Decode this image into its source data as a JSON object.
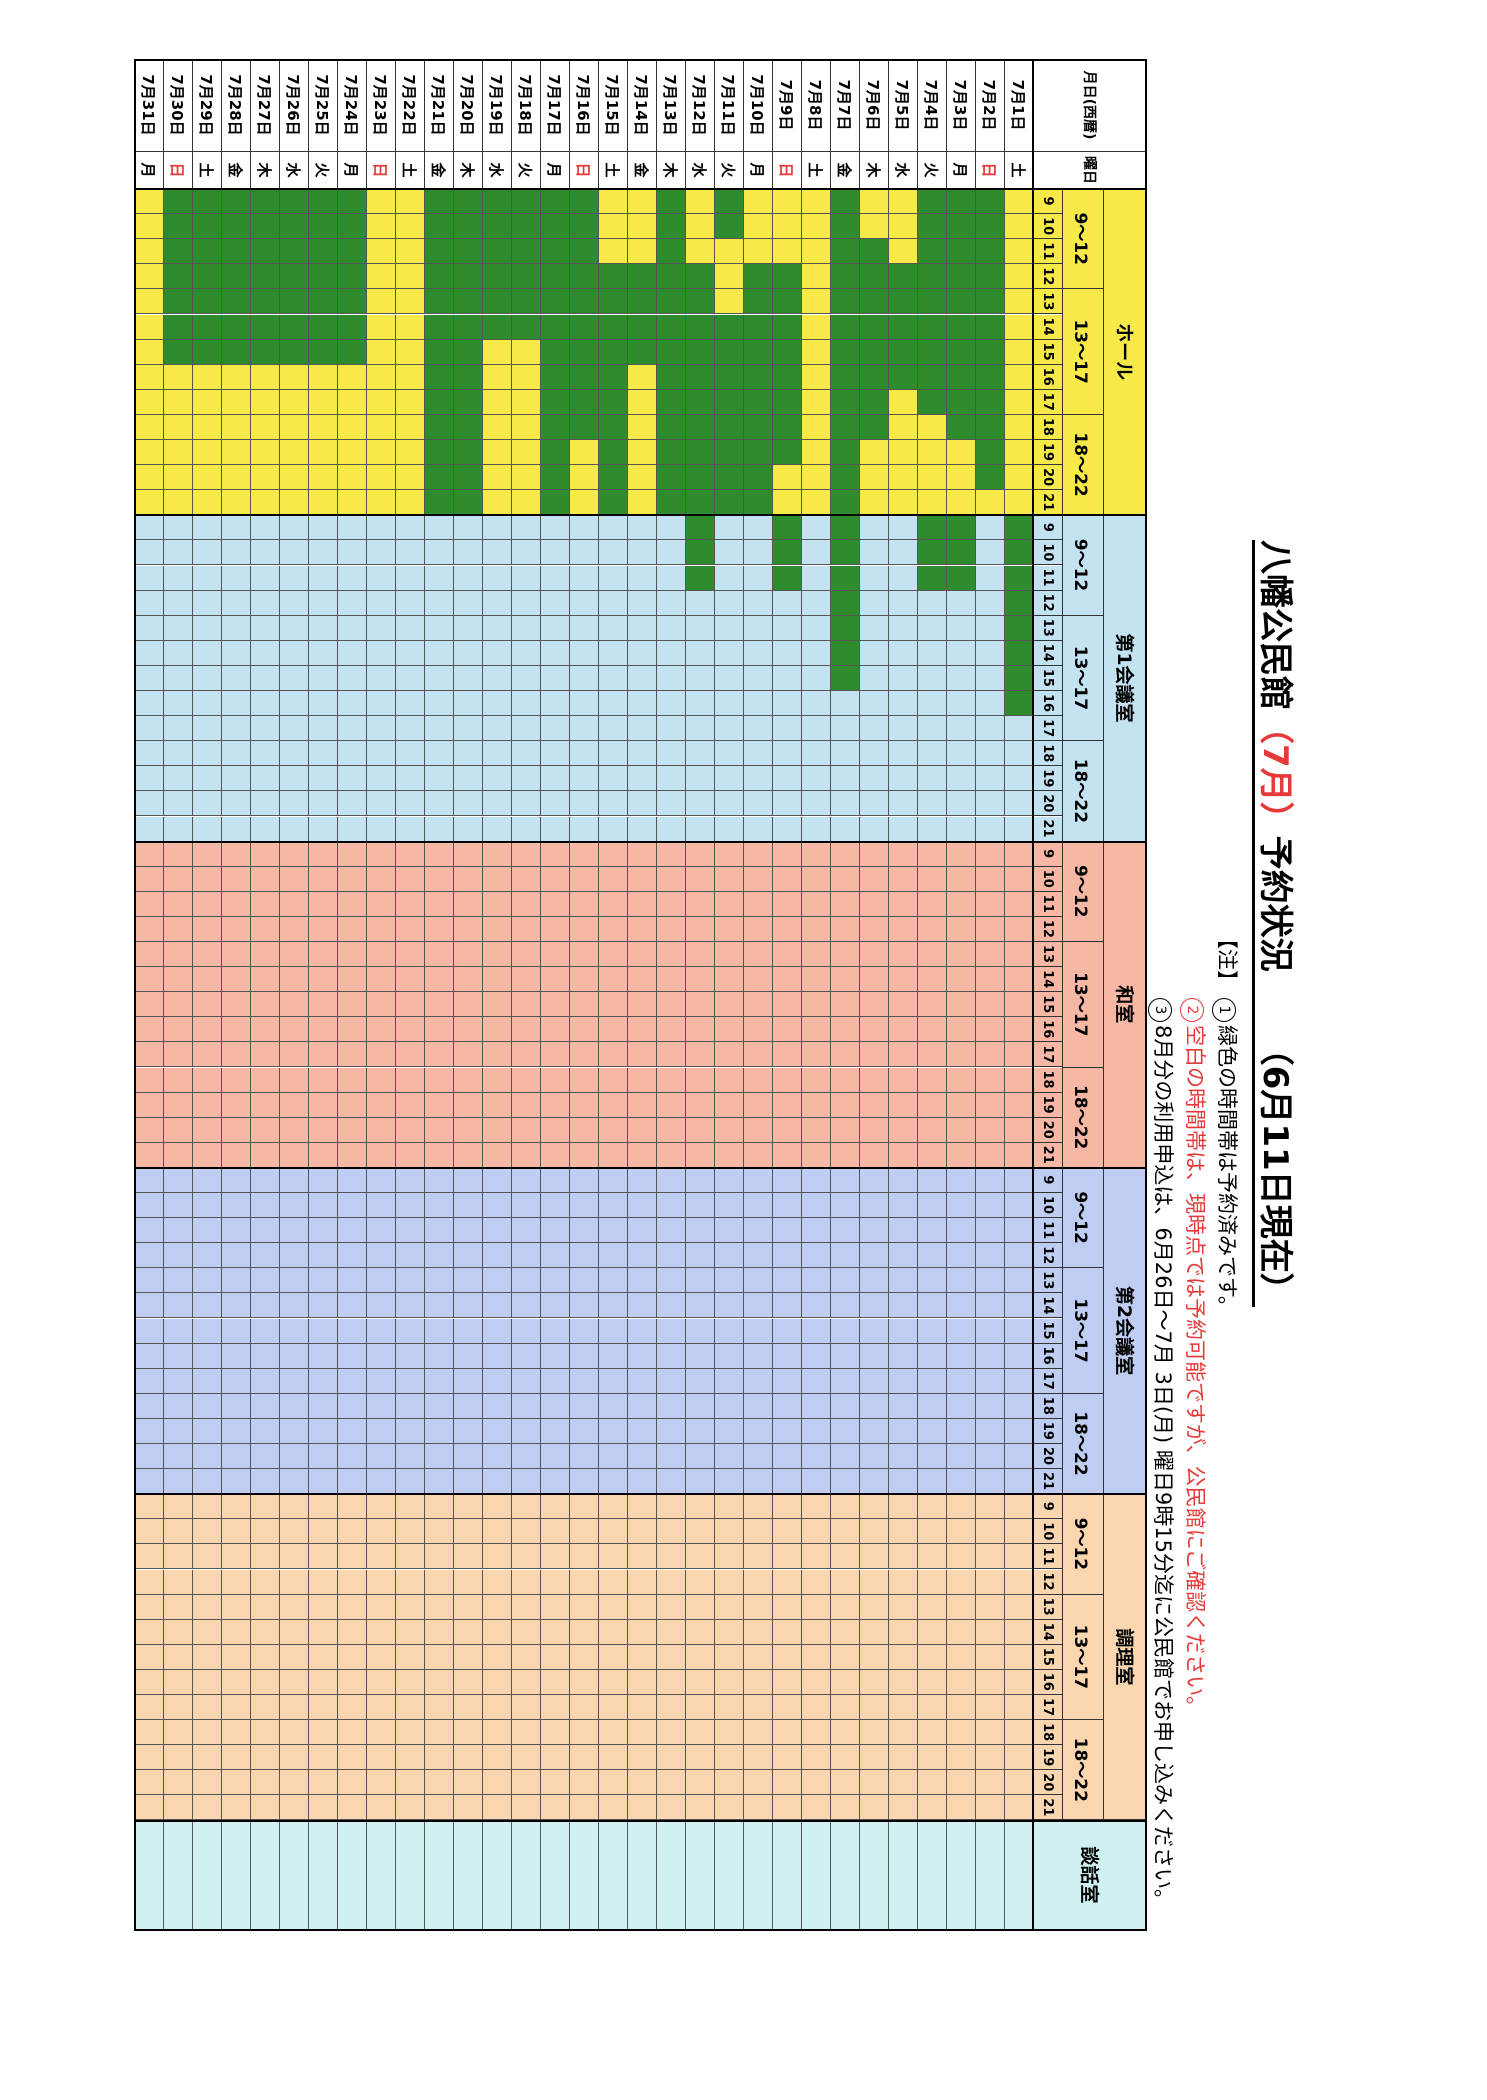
{
  "title": {
    "prefix": "八幡公民館",
    "month": "（7月）",
    "suffix": "予約状況",
    "as_of": "（6月11日現在）"
  },
  "notes": {
    "tag": "【注】",
    "n1": "緑色の時間帯は予約済みです。",
    "n2": "空白の時間帯は、現時点では予約可能ですが、公民館にご確認ください。",
    "n3": "8月分の利用申込は、6月26日～7月 3日(月) 曜日9時15分迄に公民館でお申し込みください。"
  },
  "table": {
    "date_header": "月日(西暦)",
    "weekday_header": "曜日",
    "hours": [
      "9",
      "10",
      "11",
      "12",
      "13",
      "14",
      "15",
      "16",
      "17",
      "18",
      "19",
      "20",
      "21"
    ],
    "periods": [
      "9～12",
      "13～17",
      "18～22"
    ],
    "rooms": [
      {
        "name": "ホール",
        "color": "#f7ea48"
      },
      {
        "name": "第1会議室",
        "color": "#c4e3f2"
      },
      {
        "name": "和室",
        "color": "#f6b8a4"
      },
      {
        "name": "第2会議室",
        "color": "#c0cdf2"
      },
      {
        "name": "調理室",
        "color": "#f9d6b0"
      },
      {
        "name": "談話室",
        "color": "#cff1f1"
      }
    ],
    "booked_color": "#2e8b2e",
    "sunday_color": "#e63a3a",
    "days": [
      {
        "date": "7月1日",
        "wd": "土"
      },
      {
        "date": "7月2日",
        "wd": "日"
      },
      {
        "date": "7月3日",
        "wd": "月"
      },
      {
        "date": "7月4日",
        "wd": "火"
      },
      {
        "date": "7月5日",
        "wd": "水"
      },
      {
        "date": "7月6日",
        "wd": "木"
      },
      {
        "date": "7月7日",
        "wd": "金"
      },
      {
        "date": "7月8日",
        "wd": "土"
      },
      {
        "date": "7月9日",
        "wd": "日"
      },
      {
        "date": "7月10日",
        "wd": "月"
      },
      {
        "date": "7月11日",
        "wd": "火"
      },
      {
        "date": "7月12日",
        "wd": "水"
      },
      {
        "date": "7月13日",
        "wd": "木"
      },
      {
        "date": "7月14日",
        "wd": "金"
      },
      {
        "date": "7月15日",
        "wd": "土"
      },
      {
        "date": "7月16日",
        "wd": "日"
      },
      {
        "date": "7月17日",
        "wd": "月"
      },
      {
        "date": "7月18日",
        "wd": "火"
      },
      {
        "date": "7月19日",
        "wd": "水"
      },
      {
        "date": "7月20日",
        "wd": "木"
      },
      {
        "date": "7月21日",
        "wd": "金"
      },
      {
        "date": "7月22日",
        "wd": "土"
      },
      {
        "date": "7月23日",
        "wd": "日"
      },
      {
        "date": "7月24日",
        "wd": "月"
      },
      {
        "date": "7月25日",
        "wd": "火"
      },
      {
        "date": "7月26日",
        "wd": "水"
      },
      {
        "date": "7月27日",
        "wd": "木"
      },
      {
        "date": "7月28日",
        "wd": "金"
      },
      {
        "date": "7月29日",
        "wd": "土"
      },
      {
        "date": "7月30日",
        "wd": "日"
      },
      {
        "date": "7月31日",
        "wd": "月"
      }
    ],
    "bookings": {
      "ホール": [
        "0000000000000",
        "1111111111110",
        "1111111111000",
        "1111111110000",
        "0001111100000",
        "0011111111000",
        "1111111111111",
        "0000000000000",
        "0001111111100",
        "0001111111111",
        "1100011111111",
        "0001111111111",
        "1111111111111",
        "0001111000000",
        "0001111111111",
        "1111111111000",
        "1111111111111",
        "1111110000000",
        "1111110000000",
        "1111111111111",
        "1111111111111",
        "0000000000000",
        "0000000000000",
        "1111111000000",
        "1111111000000",
        "1111111000000",
        "1111111000000",
        "1111111000000",
        "1111111000000",
        "1111111000000",
        "0000000000000"
      ],
      "第1会議室": [
        "1111111100000",
        "0000000000000",
        "1110000000000",
        "1110000000000",
        "0000000000000",
        "0000000000000",
        "1111111000000",
        "0000000000000",
        "1110000000000",
        "0000000000000",
        "0000000000000",
        "1110000000000",
        "0000000000000",
        "0000000000000",
        "0000000000000",
        "0000000000000",
        "0000000000000",
        "0000000000000",
        "0000000000000",
        "0000000000000",
        "0000000000000",
        "0000000000000",
        "0000000000000",
        "0000000000000",
        "0000000000000",
        "0000000000000",
        "0000000000000",
        "0000000000000",
        "0000000000000",
        "0000000000000",
        "0000000000000"
      ],
      "和室": [
        "0000000000000",
        "0000000000000",
        "0000000000000",
        "0000000000000",
        "0000000000000",
        "0000000000000",
        "0000000000000",
        "0000000000000",
        "0000000000000",
        "0000000000000",
        "0000000000000",
        "0000000000000",
        "0000000000000",
        "0000000000000",
        "0000000000000",
        "0000000000000",
        "0000000000000",
        "0000000000000",
        "0000000000000",
        "0000000000000",
        "0000000000000",
        "0000000000000",
        "0000000000000",
        "0000000000000",
        "0000000000000",
        "0000000000000",
        "0000000000000",
        "0000000000000",
        "0000000000000",
        "0000000000000",
        "0000000000000"
      ],
      "第2会議室": [
        "0000000000000",
        "0000000000000",
        "0000000000000",
        "0000000000000",
        "0000000000000",
        "0000000000000",
        "0000000000000",
        "0000000000000",
        "0000000000000",
        "0000000000000",
        "0000000000000",
        "0000000000000",
        "0000000000000",
        "0000000000000",
        "0000000000000",
        "0000000000000",
        "0000000000000",
        "0000000000000",
        "0000000000000",
        "0000000000000",
        "0000000000000",
        "0000000000000",
        "0000000000000",
        "0000000000000",
        "0000000000000",
        "0000000000000",
        "0000000000000",
        "0000000000000",
        "0000000000000",
        "0000000000000",
        "0000000000000"
      ],
      "調理室": [],
      "談話室": []
    }
  }
}
